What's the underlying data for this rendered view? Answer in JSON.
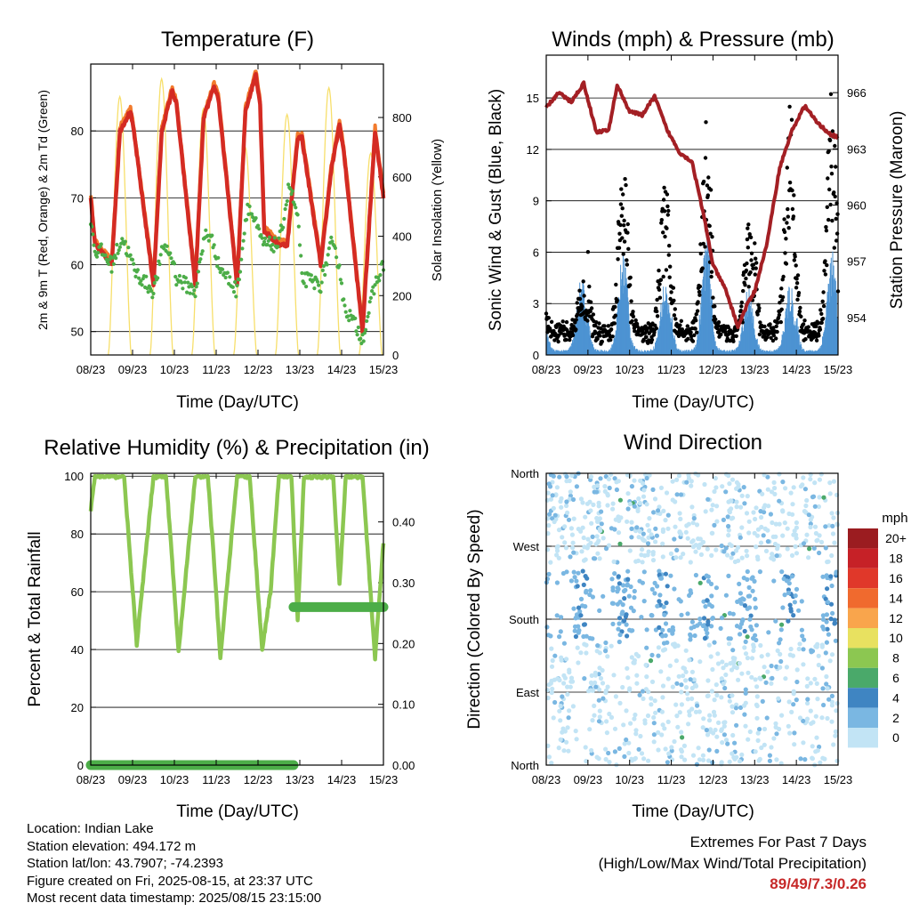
{
  "panels": {
    "temperature": {
      "title": "Temperature (F)",
      "ylabel_left": "2m & 9m T (Red, Orange) & 2m Td (Green)",
      "ylabel_right": "Solar Insolation (Yellow)",
      "xlabel": "Time (Day/UTC)"
    },
    "winds": {
      "title": "Winds (mph) & Pressure (mb)",
      "ylabel_left": "Sonic Wind & Gust (Blue, Black)",
      "ylabel_right": "Station Pressure (Maroon)",
      "xlabel": "Time (Day/UTC)"
    },
    "humidity": {
      "title": "Relative Humidity (%) & Precipitation (in)",
      "ylabel_left": "Percent & Total Rainfall",
      "xlabel": "Time (Day/UTC)"
    },
    "direction": {
      "title": "Wind Direction",
      "ylabel_left": "Direction (Colored By Speed)",
      "xlabel": "Time (Day/UTC)",
      "colorbar_title": "mph",
      "colorbar_labels": [
        "20+",
        "18",
        "16",
        "14",
        "12",
        "10",
        "8",
        "6",
        "4",
        "2",
        "0"
      ],
      "colorbar_colors": [
        "#9b1c20",
        "#c62127",
        "#e0382a",
        "#f06a2e",
        "#f9a54c",
        "#e8e160",
        "#8cc751",
        "#4aa96a",
        "#3f85c2",
        "#7ab7e2",
        "#c2e4f5"
      ]
    }
  },
  "info": {
    "location": "Location: Indian Lake",
    "elevation": "Station elevation: 494.172 m",
    "latlon": "Station lat/lon: 43.7907; -74.2393",
    "created": "Figure created on Fri, 2025-08-15, at 23:37 UTC",
    "recent": "Most recent data timestamp: 2025/08/15 23:15:00"
  },
  "extremes": {
    "line1": "Extremes For Past 7 Days",
    "line2": "(High/Low/Max Wind/Total Precipitation)",
    "values": "89/49/7.3/0.26"
  },
  "chart_data": [
    {
      "type": "line",
      "title": "Temperature (F)",
      "xlabel": "Time (Day/UTC)",
      "ylabel": "2m & 9m T (Red, Orange) & 2m Td (Green)",
      "ylabel_right": "Solar Insolation (Yellow)",
      "x_ticks": [
        "08/23",
        "09/23",
        "10/23",
        "11/23",
        "12/23",
        "13/23",
        "14/23",
        "15/23"
      ],
      "y_ticks": [
        50,
        60,
        70,
        80
      ],
      "y_right_ticks": [
        0,
        200,
        400,
        600,
        800
      ],
      "xlim": [
        0,
        7
      ],
      "ylim": [
        46.5,
        90
      ],
      "ylim_right": [
        0,
        980
      ],
      "series": [
        {
          "name": "2m T",
          "color": "#d42b23",
          "x": [
            0,
            0.1,
            0.25,
            0.5,
            0.7,
            0.95,
            1.05,
            1.5,
            1.7,
            1.95,
            2.05,
            2.5,
            2.7,
            2.95,
            3.05,
            3.5,
            3.7,
            3.95,
            4.05,
            4.15,
            4.5,
            4.7,
            4.95,
            5.05,
            5.5,
            5.75,
            5.95,
            6.05,
            6.5,
            6.8,
            7.0
          ],
          "y": [
            70,
            63,
            62,
            60,
            80,
            83,
            79,
            57,
            80,
            86,
            84,
            57,
            82,
            86.5,
            85,
            57,
            83,
            88.5,
            84,
            65,
            63,
            63,
            79,
            79,
            60,
            74,
            81,
            77,
            50,
            80,
            70
          ]
        },
        {
          "name": "2m Td",
          "color": "#4cad48",
          "x": [
            0,
            0.1,
            0.25,
            0.5,
            0.75,
            0.95,
            1.05,
            1.5,
            1.75,
            1.95,
            2.05,
            2.5,
            2.75,
            2.95,
            3.05,
            3.5,
            3.75,
            3.95,
            4.05,
            4.15,
            4.5,
            4.75,
            4.95,
            5.05,
            5.5,
            5.75,
            5.95,
            6.05,
            6.5,
            6.8,
            7.0
          ],
          "y": [
            67,
            62,
            62,
            60,
            64,
            61,
            59,
            56,
            63,
            61,
            58,
            56,
            65,
            63,
            60,
            56,
            69,
            66,
            64,
            63,
            63,
            72,
            67,
            58,
            57,
            63,
            60,
            54,
            49,
            57,
            60
          ]
        },
        {
          "name": "Solar Insolation",
          "axis": "right",
          "color": "#f7df6b",
          "peaks": [
            870,
            930,
            830,
            700,
            810,
            900,
            680,
            780
          ]
        }
      ]
    },
    {
      "type": "scatter",
      "title": "Winds (mph) & Pressure (mb)",
      "xlabel": "Time (Day/UTC)",
      "ylabel": "Sonic Wind & Gust (Blue, Black)",
      "ylabel_right": "Station Pressure (Maroon)",
      "x_ticks": [
        "08/23",
        "09/23",
        "10/23",
        "11/23",
        "12/23",
        "13/23",
        "14/23",
        "15/23"
      ],
      "y_ticks": [
        0,
        3,
        6,
        9,
        12,
        15
      ],
      "y_right_ticks": [
        954,
        957,
        960,
        963,
        966
      ],
      "xlim": [
        0,
        7
      ],
      "ylim": [
        0,
        17.5
      ],
      "ylim_right": [
        952,
        968
      ],
      "series": [
        {
          "name": "Station Pressure",
          "color": "#a31f24",
          "x": [
            0,
            0.3,
            0.6,
            0.9,
            1.2,
            1.5,
            1.7,
            2.0,
            2.3,
            2.6,
            2.9,
            3.2,
            3.5,
            3.8,
            4.0,
            4.3,
            4.6,
            4.8,
            5.0,
            5.3,
            5.6,
            5.9,
            6.2,
            6.5,
            6.8,
            7.0
          ],
          "y": [
            965.2,
            966.0,
            965.5,
            966.5,
            963.9,
            964.0,
            966.4,
            965.0,
            964.8,
            965.8,
            964.0,
            962.8,
            962.3,
            959.2,
            956.8,
            955.5,
            953.5,
            954.6,
            955.4,
            958.0,
            962.0,
            964.0,
            965.3,
            964.4,
            963.8,
            963.6
          ]
        },
        {
          "name": "Sonic Wind",
          "color": "#4d93d2",
          "daily_max": [
            4.6,
            6.3,
            4.4,
            7.3,
            4.0,
            4.2,
            6.2,
            4.1
          ]
        },
        {
          "name": "Gust",
          "color": "#000000",
          "daily_max": [
            3.7,
            12.0,
            10.0,
            13.4,
            7.5,
            15.5,
            15.0,
            8.2
          ]
        }
      ]
    },
    {
      "type": "line",
      "title": "Relative Humidity (%) & Precipitation (in)",
      "xlabel": "Time (Day/UTC)",
      "ylabel": "Percent & Total Rainfall",
      "x_ticks": [
        "08/23",
        "09/23",
        "10/23",
        "11/23",
        "12/23",
        "13/23",
        "14/23",
        "15/23"
      ],
      "y_ticks": [
        0,
        20,
        40,
        60,
        80,
        100
      ],
      "y_right_ticks": [
        "0.00",
        "0.10",
        "0.20",
        "0.30",
        "0.40"
      ],
      "xlim": [
        0,
        7
      ],
      "ylim": [
        0,
        101
      ],
      "ylim_right": [
        0,
        0.48
      ],
      "series": [
        {
          "name": "Relative Humidity",
          "color": "#8cc751",
          "x": [
            0,
            0.1,
            0.8,
            0.95,
            1.1,
            1.5,
            1.8,
            1.95,
            2.1,
            2.5,
            2.8,
            2.95,
            3.1,
            3.5,
            3.8,
            3.95,
            4.1,
            4.3,
            4.5,
            4.8,
            4.95,
            5.1,
            5.5,
            5.8,
            5.95,
            6.1,
            6.5,
            6.8,
            7.0
          ],
          "y": [
            88,
            100,
            100,
            70,
            42,
            100,
            100,
            70,
            39,
            100,
            100,
            70,
            37,
            100,
            100,
            70,
            40,
            60,
            100,
            100,
            50,
            100,
            100,
            100,
            62,
            100,
            100,
            37,
            77
          ]
        },
        {
          "name": "Total Precipitation",
          "axis": "right",
          "color": "#4cad48",
          "x": [
            0,
            4.85,
            4.85,
            7.0
          ],
          "y": [
            0.0,
            0.0,
            0.26,
            0.26
          ]
        }
      ]
    },
    {
      "type": "scatter",
      "title": "Wind Direction",
      "xlabel": "Time (Day/UTC)",
      "ylabel": "Direction (Colored By Speed)",
      "x_ticks": [
        "08/23",
        "09/23",
        "10/23",
        "11/23",
        "12/23",
        "13/23",
        "14/23",
        "15/23"
      ],
      "y_ticks": [
        "North",
        "East",
        "South",
        "West",
        "North"
      ],
      "xlim": [
        0,
        7
      ],
      "ylim": [
        0,
        360
      ],
      "colorbar": {
        "title": "mph",
        "levels": [
          0,
          2,
          4,
          6,
          8,
          10,
          12,
          14,
          16,
          18,
          20
        ]
      }
    }
  ]
}
